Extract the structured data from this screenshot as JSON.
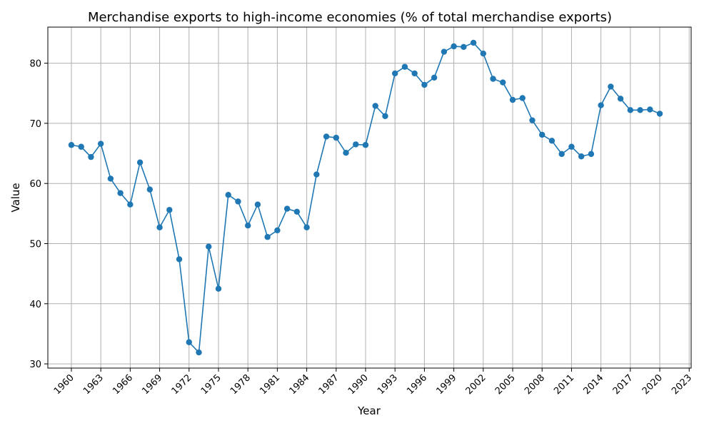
{
  "chart_data": {
    "type": "line",
    "title": "Merchandise exports to high-income economies (% of total merchandise exports)",
    "xlabel": "Year",
    "ylabel": "Value",
    "xlim": [
      1957.6,
      2023.2
    ],
    "ylim": [
      29.3,
      86.0
    ],
    "x_ticks": [
      1960,
      1963,
      1966,
      1969,
      1972,
      1975,
      1978,
      1981,
      1984,
      1987,
      1990,
      1993,
      1996,
      1999,
      2002,
      2005,
      2008,
      2011,
      2014,
      2017,
      2020,
      2023
    ],
    "y_ticks": [
      30,
      40,
      50,
      60,
      70,
      80
    ],
    "grid": true,
    "legend": "none",
    "colors": {
      "series": "#1f77b4",
      "grid": "#b0b0b0"
    },
    "x": [
      1960,
      1961,
      1962,
      1963,
      1964,
      1965,
      1966,
      1967,
      1968,
      1969,
      1970,
      1971,
      1972,
      1973,
      1974,
      1975,
      1976,
      1977,
      1978,
      1979,
      1980,
      1981,
      1982,
      1983,
      1984,
      1985,
      1986,
      1987,
      1988,
      1989,
      1990,
      1991,
      1992,
      1993,
      1994,
      1995,
      1996,
      1997,
      1998,
      1999,
      2000,
      2001,
      2002,
      2003,
      2004,
      2005,
      2006,
      2007,
      2008,
      2009,
      2010,
      2011,
      2012,
      2013,
      2014,
      2015,
      2016,
      2017,
      2018,
      2019,
      2020
    ],
    "series": [
      {
        "values": [
          66.4,
          66.1,
          64.4,
          66.6,
          60.8,
          58.4,
          56.5,
          63.5,
          59.0,
          52.7,
          55.6,
          47.4,
          33.6,
          31.9,
          49.5,
          42.5,
          58.1,
          57.0,
          53.0,
          56.5,
          51.1,
          52.2,
          55.8,
          55.3,
          52.7,
          61.5,
          67.8,
          67.6,
          65.1,
          66.5,
          66.4,
          72.9,
          71.2,
          78.3,
          79.4,
          78.3,
          76.4,
          77.6,
          81.9,
          82.8,
          82.7,
          83.4,
          81.6,
          77.4,
          76.8,
          73.9,
          74.2,
          70.5,
          68.1,
          67.1,
          64.9,
          66.1,
          64.5,
          64.9,
          73.0,
          76.1,
          74.1,
          72.2,
          72.2,
          72.3,
          71.6
        ]
      }
    ]
  }
}
